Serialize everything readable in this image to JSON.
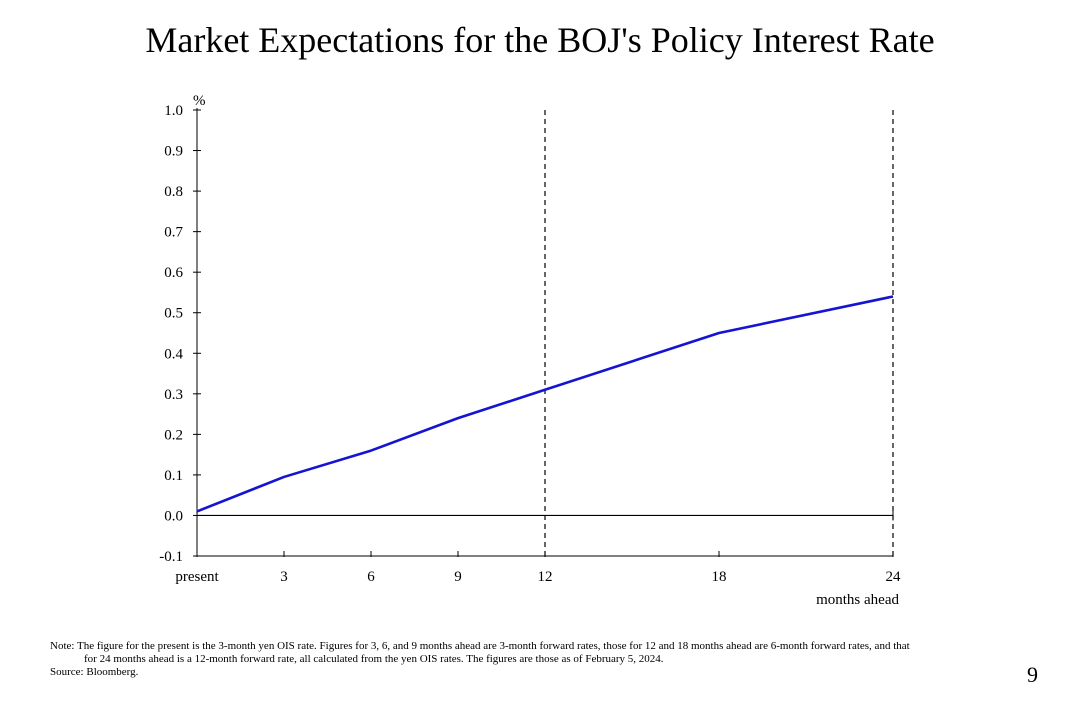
{
  "title": "Market Expectations for the BOJ's Policy Interest Rate",
  "notes": {
    "line1": "Note: The figure for the present is the 3-month yen OIS rate. Figures for 3, 6, and 9 months ahead are 3-month forward rates, those for 12 and 18 months ahead are 6-month forward rates, and that",
    "line2": "for 24 months ahead is a 12-month forward rate, all calculated from the yen OIS rates. The figures are those as of February 5, 2024.",
    "source": "Source: Bloomberg."
  },
  "page_number": "9",
  "chart_data": {
    "type": "line",
    "title": "Market Expectations for the BOJ's Policy Interest Rate",
    "ylabel": "%",
    "xlabel": "months ahead",
    "ylim": [
      -0.1,
      1.0
    ],
    "yticks": [
      1.0,
      0.9,
      0.8,
      0.7,
      0.6,
      0.5,
      0.4,
      0.3,
      0.2,
      0.1,
      0.0,
      -0.1
    ],
    "ytick_labels": [
      "1.0",
      "0.9",
      "0.8",
      "0.7",
      "0.6",
      "0.5",
      "0.4",
      "0.3",
      "0.2",
      "0.1",
      "0.0",
      "-0.1"
    ],
    "x": [
      0,
      3,
      6,
      9,
      12,
      18,
      24
    ],
    "xtick_labels": [
      "present",
      "3",
      "6",
      "9",
      "12",
      "18",
      "24"
    ],
    "xlim": [
      0,
      24
    ],
    "series": [
      {
        "name": "Market expectations",
        "color": "#1414d2",
        "values": [
          0.01,
          0.095,
          0.16,
          0.24,
          0.31,
          0.45,
          0.54
        ]
      }
    ],
    "vlines": [
      12,
      24
    ],
    "hline": 0.0
  }
}
